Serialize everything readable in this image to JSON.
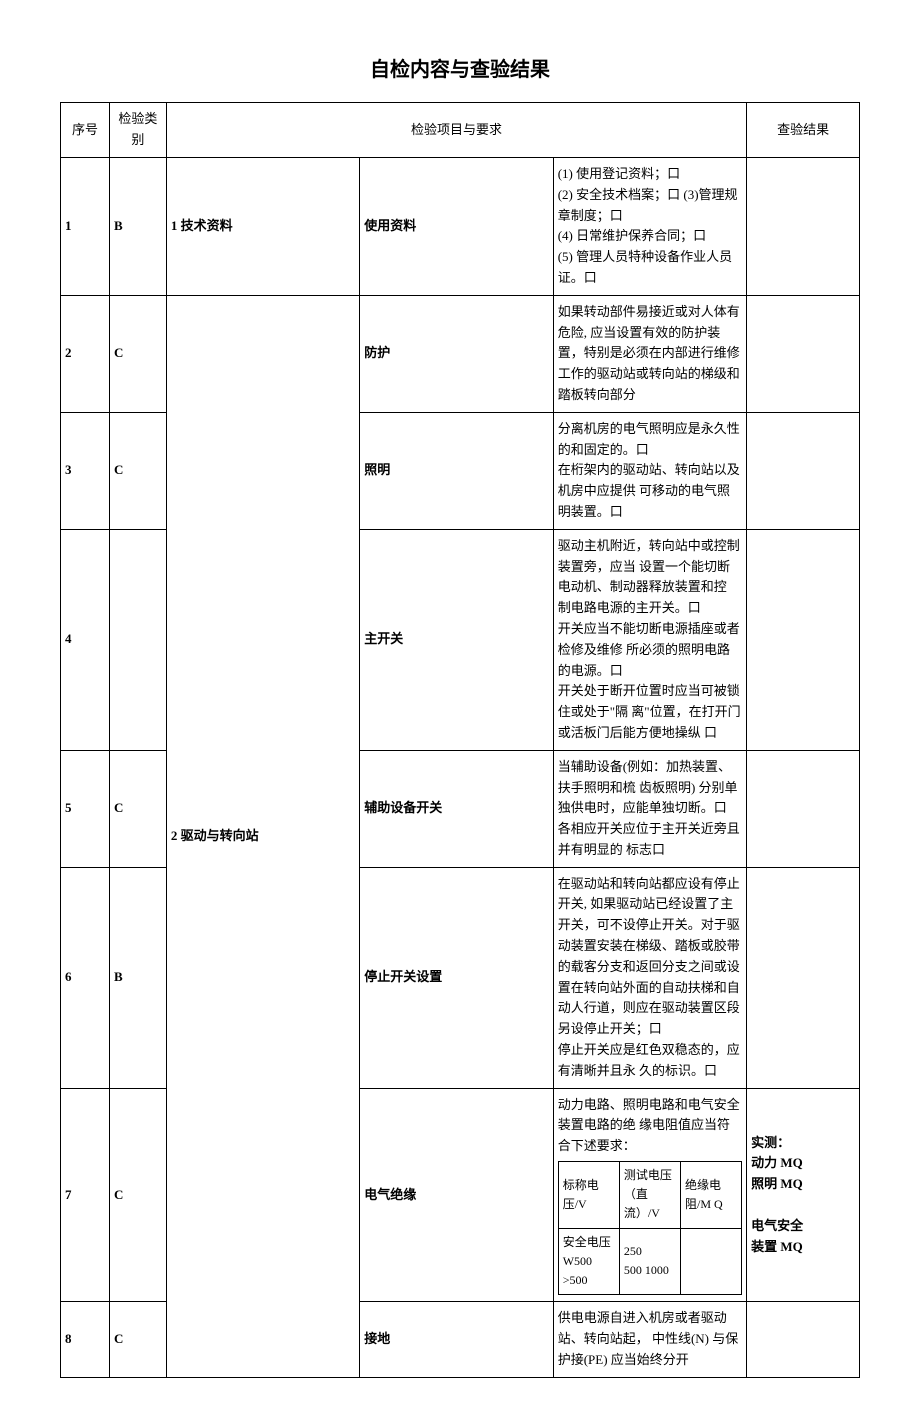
{
  "title": "自检内容与查验结果",
  "headers": {
    "seq": "序号",
    "category": "检验类别",
    "items": "检验项目与要求",
    "result": "查验结果"
  },
  "groups": {
    "g1": "1 技术资料",
    "g2": "2 驱动与转向站"
  },
  "rows": {
    "r1": {
      "seq": "1",
      "cat": "B",
      "item": "使用资料",
      "req": "(1)   使用登记资料；口\n  (2) 安全技术档案；口 (3)管理规章制度；口\n(4)   日常维护保养合同；口\n(5)   管理人员特种设备作业人员证。口"
    },
    "r2": {
      "seq": "2",
      "cat": "C",
      "item": "防护",
      "req": " 如果转动部件易接近或对人体有危险, 应当设置有效的防护装置，特别是必须在内部进行维修工作的驱动站或转向站的梯级和踏板转向部分"
    },
    "r3": {
      "seq": "3",
      "cat": "C",
      "item": "照明",
      "req": "分离机房的电气照明应是永久性的和固定的。口\n 在桁架内的驱动站、转向站以及机房中应提供  可移动的电气照明装置。口"
    },
    "r4": {
      "seq": "4",
      "cat": "",
      "item": "主开关",
      "req": " 驱动主机附近，转向站中或控制装置旁，应当  设置一个能切断电动机、制动器释放装置和控  制电路电源的主开关。口\n 开关应当不能切断电源插座或者检修及维修 所必须的照明电路的电源。口\n 开关处于断开位置时应当可被锁住或处于\"隔  离\"位置，在打开门或活板门后能方便地操纵  口"
    },
    "r5": {
      "seq": "5",
      "cat": "C",
      "item": "辅助设备开关",
      "req": " 当辅助设备(例如：加热装置、扶手照明和梳 齿板照明) 分别单独供电时，应能单独切断。口\n 各相应开关应位于主开关近旁且并有明显的 标志口"
    },
    "r6": {
      "seq": "6",
      "cat": "B",
      "item": "停止开关设置",
      "req": " 在驱动站和转向站都应设有停止开关, 如果驱动站已经设置了主开关，可不设停止开关。对于驱动装置安装在梯级、踏板或胶带的载客分支和返回分支之间或设置在转向站外面的自动扶梯和自动人行道，则应在驱动装置区段另设停止开关；口\n 停止开关应是红色双稳态的，应有清晰并且永  久的标识。口"
    },
    "r7": {
      "seq": "7",
      "cat": "C",
      "item": "电气绝缘",
      "intro": " 动力电路、照明电路和电气安全装置电路的绝  缘电阻值应当符合下述要求：",
      "inner": {
        "h1": "标称电压/V",
        "h2": "测试电压 （直流）/V",
        "h3": "绝缘电阻/M Q",
        "c1": "安全电压\nW500  >500",
        "c2": "250\n  500  1000",
        "c3": ""
      },
      "result": "实测：\n动力        MQ\n照明        MQ\n\n电气安全\n装置         MQ"
    },
    "r8": {
      "seq": "8",
      "cat": "C",
      "item": "接地",
      "req": " 供电电源自进入机房或者驱动站、转向站起，   中性线(N) 与保护接(PE) 应当始终分开"
    }
  }
}
